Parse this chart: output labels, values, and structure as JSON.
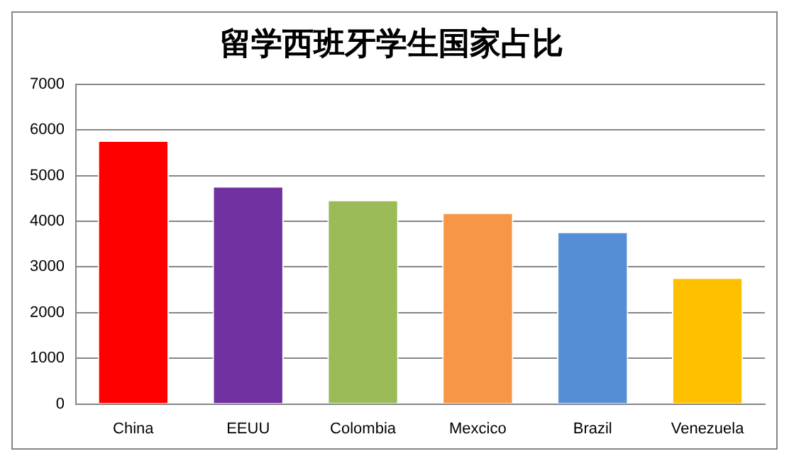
{
  "chart_data": {
    "type": "bar",
    "title": "留学西班牙学生国家占比",
    "categories": [
      "China",
      "EEUU",
      "Colombia",
      "Mexcico",
      "Brazil",
      "Venezuela"
    ],
    "values": [
      5770,
      4770,
      4470,
      4190,
      3770,
      2770
    ],
    "colors": [
      "#ff0000",
      "#7030a0",
      "#9bbb59",
      "#f79646",
      "#558ed5",
      "#ffc000"
    ],
    "ylim": [
      0,
      7000
    ],
    "yticks": [
      0,
      1000,
      2000,
      3000,
      4000,
      5000,
      6000,
      7000
    ],
    "grid": "y",
    "legend": false
  }
}
